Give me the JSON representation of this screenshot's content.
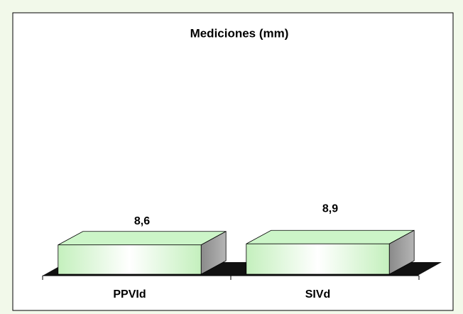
{
  "chart_data": {
    "type": "bar3d",
    "title": "Mediciones (mm)",
    "categories": [
      "PPVId",
      "SIVd"
    ],
    "values": [
      8.6,
      8.9
    ],
    "value_labels": [
      "8,6",
      "8,9"
    ],
    "color": "#ccf5c8",
    "ylim": [
      0,
      80
    ]
  }
}
